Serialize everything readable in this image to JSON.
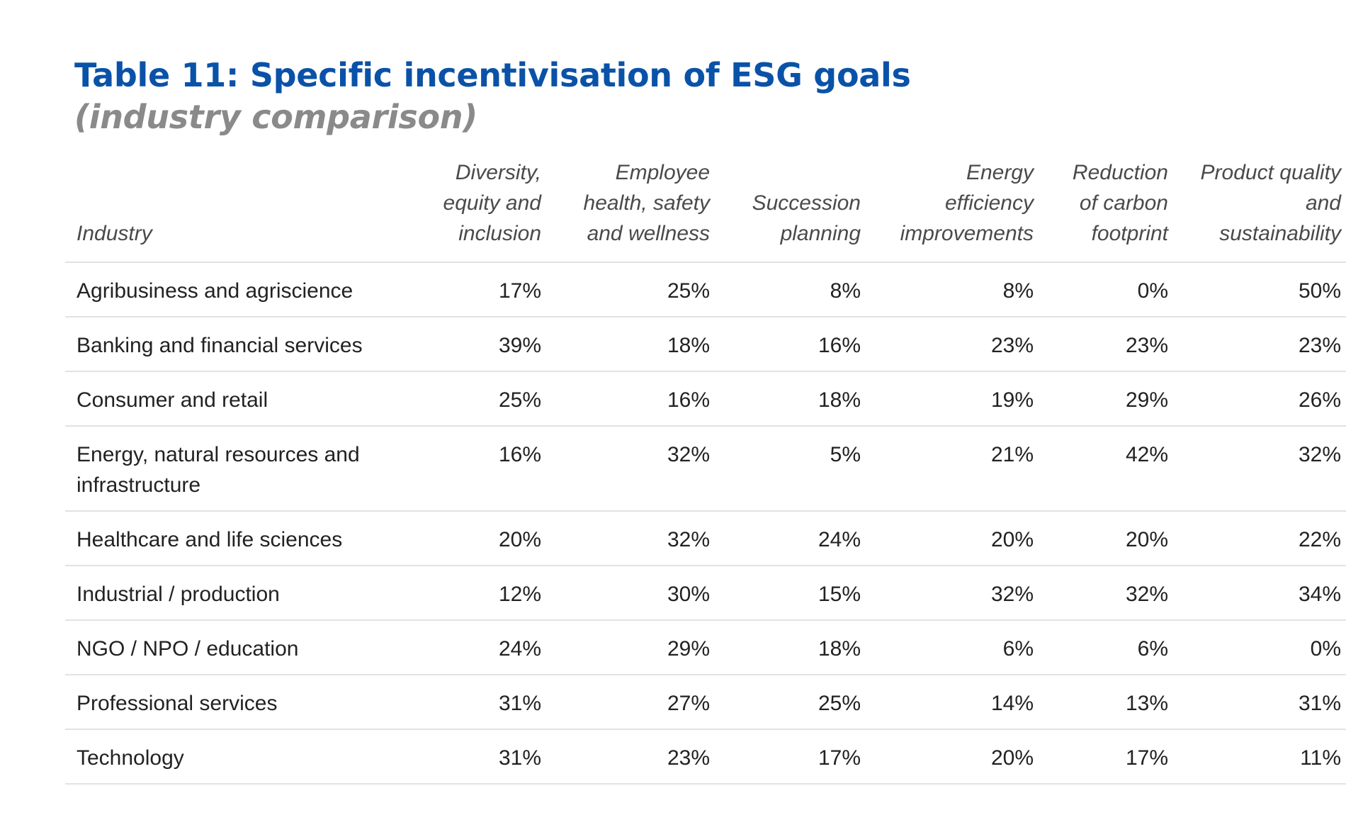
{
  "title": "Table 11: Specific incentivisation of ESG goals",
  "subtitle": "(industry comparison)",
  "table": {
    "headers": [
      "Industry",
      "Diversity, equity and inclusion",
      "Employee health, safety and wellness",
      "Succession planning",
      "Energy efficiency improvements",
      "Reduction of carbon footprint",
      "Product quality and sustainability"
    ],
    "rows": [
      [
        "Agribusiness and agriscience",
        "17%",
        "25%",
        "8%",
        "8%",
        "0%",
        "50%"
      ],
      [
        "Banking and financial services",
        "39%",
        "18%",
        "16%",
        "23%",
        "23%",
        "23%"
      ],
      [
        "Consumer and retail",
        "25%",
        "16%",
        "18%",
        "19%",
        "29%",
        "26%"
      ],
      [
        "Energy, natural resources and infrastructure",
        "16%",
        "32%",
        "5%",
        "21%",
        "42%",
        "32%"
      ],
      [
        "Healthcare and life sciences",
        "20%",
        "32%",
        "24%",
        "20%",
        "20%",
        "22%"
      ],
      [
        "Industrial / production",
        "12%",
        "30%",
        "15%",
        "32%",
        "32%",
        "34%"
      ],
      [
        "NGO / NPO / education",
        "24%",
        "29%",
        "18%",
        "6%",
        "6%",
        "0%"
      ],
      [
        "Professional services",
        "31%",
        "27%",
        "25%",
        "14%",
        "13%",
        "31%"
      ],
      [
        "Technology",
        "31%",
        "23%",
        "17%",
        "20%",
        "17%",
        "11%"
      ]
    ]
  },
  "colors": {
    "title": "#0a52a8",
    "subtitle": "#8a8a8a",
    "rule": "#e2e2e2"
  }
}
